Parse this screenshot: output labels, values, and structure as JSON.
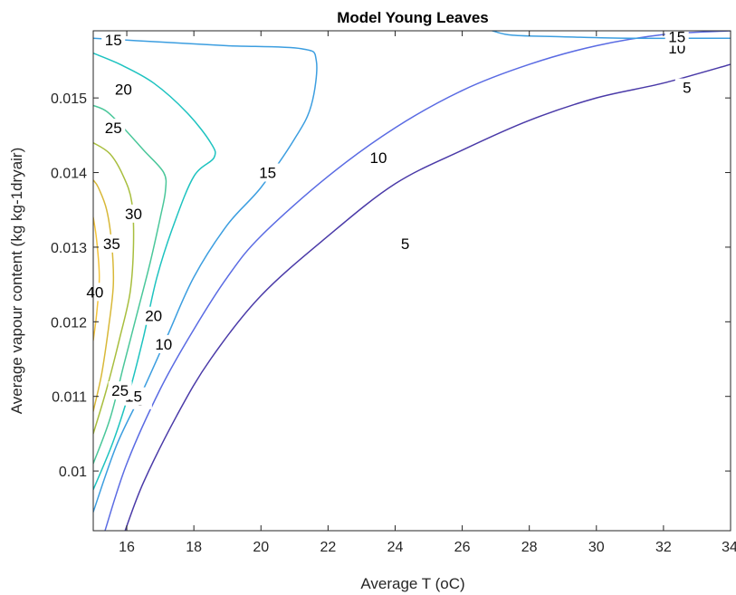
{
  "chart_data": {
    "type": "contour",
    "title": "Model Young Leaves",
    "xlabel": "Average T (oC)",
    "ylabel": "Average vapour content (kg kg-1dryair)",
    "xlim": [
      15,
      34
    ],
    "ylim": [
      0.0092,
      0.0159
    ],
    "xticks": [
      16,
      18,
      20,
      22,
      24,
      26,
      28,
      30,
      32,
      34
    ],
    "xtick_labels": [
      "16",
      "18",
      "20",
      "22",
      "24",
      "26",
      "28",
      "30",
      "32",
      "34"
    ],
    "yticks": [
      0.01,
      0.011,
      0.012,
      0.013,
      0.014,
      0.015
    ],
    "ytick_labels": [
      "0.01",
      "0.011",
      "0.012",
      "0.013",
      "0.014",
      "0.015"
    ],
    "grid": false,
    "levels": [
      {
        "level": 5,
        "label": "5",
        "color": "#4a3aa8",
        "segments": [
          [
            [
              15.95,
              0.0092
            ],
            [
              16.5,
              0.00985
            ],
            [
              17.5,
              0.01075
            ],
            [
              18.5,
              0.0115
            ],
            [
              20,
              0.01235
            ],
            [
              22,
              0.01315
            ],
            [
              24,
              0.01385
            ],
            [
              26,
              0.0143
            ],
            [
              28,
              0.0147
            ],
            [
              30,
              0.015
            ],
            [
              32,
              0.0152
            ],
            [
              34,
              0.01545
            ]
          ]
        ],
        "labels_at": [
          [
            16.4,
            0.01095
          ],
          [
            24.3,
            0.01305
          ],
          [
            32.7,
            0.01514
          ]
        ]
      },
      {
        "level": 10,
        "label": "10",
        "color": "#5a6be3",
        "segments": [
          [
            [
              15.35,
              0.0092
            ],
            [
              16,
              0.0101
            ],
            [
              17,
              0.0111
            ],
            [
              18,
              0.0119
            ],
            [
              19,
              0.0126
            ],
            [
              20,
              0.01315
            ],
            [
              22,
              0.01395
            ],
            [
              24,
              0.0146
            ],
            [
              26,
              0.0151
            ],
            [
              28,
              0.01545
            ],
            [
              30,
              0.0157
            ],
            [
              32,
              0.01585
            ],
            [
              34,
              0.0159
            ]
          ]
        ],
        "labels_at": [
          [
            17.1,
            0.0117
          ],
          [
            23.5,
            0.0142
          ],
          [
            32.4,
            0.01567
          ]
        ]
      },
      {
        "level": 15,
        "label": "15",
        "color": "#3c9ee0",
        "segments": [
          [
            [
              15,
              0.00945
            ],
            [
              15.7,
              0.01035
            ],
            [
              16.5,
              0.0111
            ],
            [
              17.2,
              0.0118
            ],
            [
              18,
              0.0126
            ],
            [
              19,
              0.0133
            ],
            [
              20,
              0.0138
            ],
            [
              21,
              0.01445
            ],
            [
              21.5,
              0.0149
            ],
            [
              21.65,
              0.0155
            ],
            [
              21.2,
              0.01566
            ],
            [
              19,
              0.0157
            ],
            [
              17,
              0.01575
            ],
            [
              15,
              0.0158
            ]
          ],
          [
            [
              26.9,
              0.0159
            ],
            [
              27.5,
              0.01584
            ],
            [
              29,
              0.01582
            ],
            [
              31,
              0.0158
            ],
            [
              34,
              0.0158
            ]
          ]
        ],
        "labels_at": [
          [
            15.6,
            0.01578
          ],
          [
            16.2,
            0.011
          ],
          [
            20.2,
            0.014
          ],
          [
            32.4,
            0.01582
          ]
        ]
      },
      {
        "level": 20,
        "label": "20",
        "color": "#1ec3c0",
        "segments": [
          [
            [
              15,
              0.00975
            ],
            [
              15.6,
              0.0104
            ],
            [
              16.1,
              0.0111
            ],
            [
              16.5,
              0.0118
            ],
            [
              16.9,
              0.0126
            ],
            [
              17.4,
              0.0133
            ],
            [
              18,
              0.01395
            ],
            [
              18.6,
              0.0142
            ],
            [
              18.5,
              0.0144
            ],
            [
              17.8,
              0.0148
            ],
            [
              16.8,
              0.0152
            ],
            [
              15.8,
              0.01545
            ],
            [
              15,
              0.0156
            ]
          ]
        ],
        "labels_at": [
          [
            15.9,
            0.01512
          ],
          [
            16.8,
            0.01208
          ]
        ]
      },
      {
        "level": 25,
        "label": "25",
        "color": "#4ac79a",
        "segments": [
          [
            [
              15,
              0.0101
            ],
            [
              15.5,
              0.0107
            ],
            [
              15.9,
              0.0114
            ],
            [
              16.3,
              0.0121
            ],
            [
              16.7,
              0.0128
            ],
            [
              17,
              0.0134
            ],
            [
              17.15,
              0.01375
            ],
            [
              17.1,
              0.014
            ],
            [
              16.5,
              0.0143
            ],
            [
              15.9,
              0.0146
            ],
            [
              15.4,
              0.01482
            ],
            [
              15,
              0.0149
            ]
          ]
        ],
        "labels_at": [
          [
            15.8,
            0.01108
          ],
          [
            15.6,
            0.0146
          ]
        ]
      },
      {
        "level": 30,
        "label": "30",
        "color": "#a8be3e",
        "segments": [
          [
            [
              15,
              0.0105
            ],
            [
              15.4,
              0.0111
            ],
            [
              15.8,
              0.0118
            ],
            [
              16.1,
              0.0124
            ],
            [
              16.2,
              0.01305
            ],
            [
              16.15,
              0.0136
            ],
            [
              15.9,
              0.01395
            ],
            [
              15.5,
              0.01425
            ],
            [
              15,
              0.0144
            ]
          ]
        ],
        "labels_at": [
          [
            16.2,
            0.01345
          ]
        ]
      },
      {
        "level": 35,
        "label": "35",
        "color": "#d8b838",
        "segments": [
          [
            [
              15,
              0.0108
            ],
            [
              15.25,
              0.0113
            ],
            [
              15.45,
              0.0119
            ],
            [
              15.6,
              0.0125
            ],
            [
              15.55,
              0.01305
            ],
            [
              15.4,
              0.0135
            ],
            [
              15.15,
              0.0138
            ],
            [
              15,
              0.0139
            ]
          ]
        ],
        "labels_at": [
          [
            15.55,
            0.01305
          ]
        ]
      },
      {
        "level": 40,
        "label": "40",
        "color": "#f4c43c",
        "segments": [
          [
            [
              15,
              0.01175
            ],
            [
              15.1,
              0.0121
            ],
            [
              15.18,
              0.0126
            ],
            [
              15.1,
              0.0131
            ],
            [
              15,
              0.0134
            ]
          ]
        ],
        "labels_at": [
          [
            15.05,
            0.0124
          ]
        ]
      }
    ]
  }
}
